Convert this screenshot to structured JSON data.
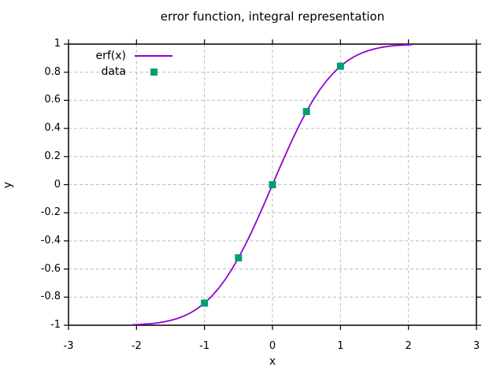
{
  "chart_data": {
    "type": "line",
    "title": "error function, integral representation",
    "xlabel": "x",
    "ylabel": "y",
    "xlim": [
      -3,
      3
    ],
    "ylim": [
      -1,
      1
    ],
    "x_ticks": [
      -3,
      -2,
      -1,
      0,
      1,
      2,
      3
    ],
    "x_tick_labels": [
      "-3",
      "-2",
      "-1",
      "0",
      "1",
      "2",
      "3"
    ],
    "y_ticks": [
      -1,
      -0.8,
      -0.6,
      -0.4,
      -0.2,
      0,
      0.2,
      0.4,
      0.6,
      0.8,
      1
    ],
    "y_tick_labels": [
      "-1",
      "-0.8",
      "-0.6",
      "-0.4",
      "-0.2",
      "0",
      "0.2",
      "0.4",
      "0.6",
      "0.8",
      "1"
    ],
    "grid": true,
    "tick_style": "out-mirrored",
    "legend_position": "top-left",
    "colors": {
      "curve": "#9400d3",
      "marker": "#009e73",
      "grid": "#bdbdbd",
      "axis": "#000000",
      "background": "#ffffff",
      "text": "#000000"
    },
    "series": [
      {
        "name": "erf(x)",
        "type": "line",
        "color": "#9400d3",
        "x": [
          -2.05,
          -2.0,
          -1.9,
          -1.8,
          -1.7,
          -1.6,
          -1.5,
          -1.4,
          -1.3,
          -1.2,
          -1.1,
          -1.0,
          -0.9,
          -0.8,
          -0.7,
          -0.6,
          -0.5,
          -0.4,
          -0.3,
          -0.2,
          -0.1,
          0,
          0.1,
          0.2,
          0.3,
          0.4,
          0.5,
          0.6,
          0.7,
          0.8,
          0.9,
          1.0,
          1.1,
          1.2,
          1.3,
          1.4,
          1.5,
          1.6,
          1.7,
          1.8,
          1.9,
          2.0,
          2.05
        ],
        "y": [
          -0.9963,
          -0.9953,
          -0.9928,
          -0.9891,
          -0.9838,
          -0.9764,
          -0.9661,
          -0.9523,
          -0.934,
          -0.9103,
          -0.8802,
          -0.8427,
          -0.7969,
          -0.7421,
          -0.6778,
          -0.6039,
          -0.5205,
          -0.4284,
          -0.3286,
          -0.2227,
          -0.1125,
          0,
          0.1125,
          0.2227,
          0.3286,
          0.4284,
          0.5205,
          0.6039,
          0.6778,
          0.7421,
          0.7969,
          0.8427,
          0.8802,
          0.9103,
          0.934,
          0.9523,
          0.9661,
          0.9764,
          0.9838,
          0.9891,
          0.9928,
          0.9953,
          0.9963
        ]
      },
      {
        "name": "data",
        "type": "points",
        "marker": "square",
        "color": "#009e73",
        "x": [
          -1,
          -0.5,
          0,
          0.5,
          1
        ],
        "y": [
          -0.8427,
          -0.5205,
          0,
          0.5205,
          0.8427
        ]
      }
    ]
  }
}
